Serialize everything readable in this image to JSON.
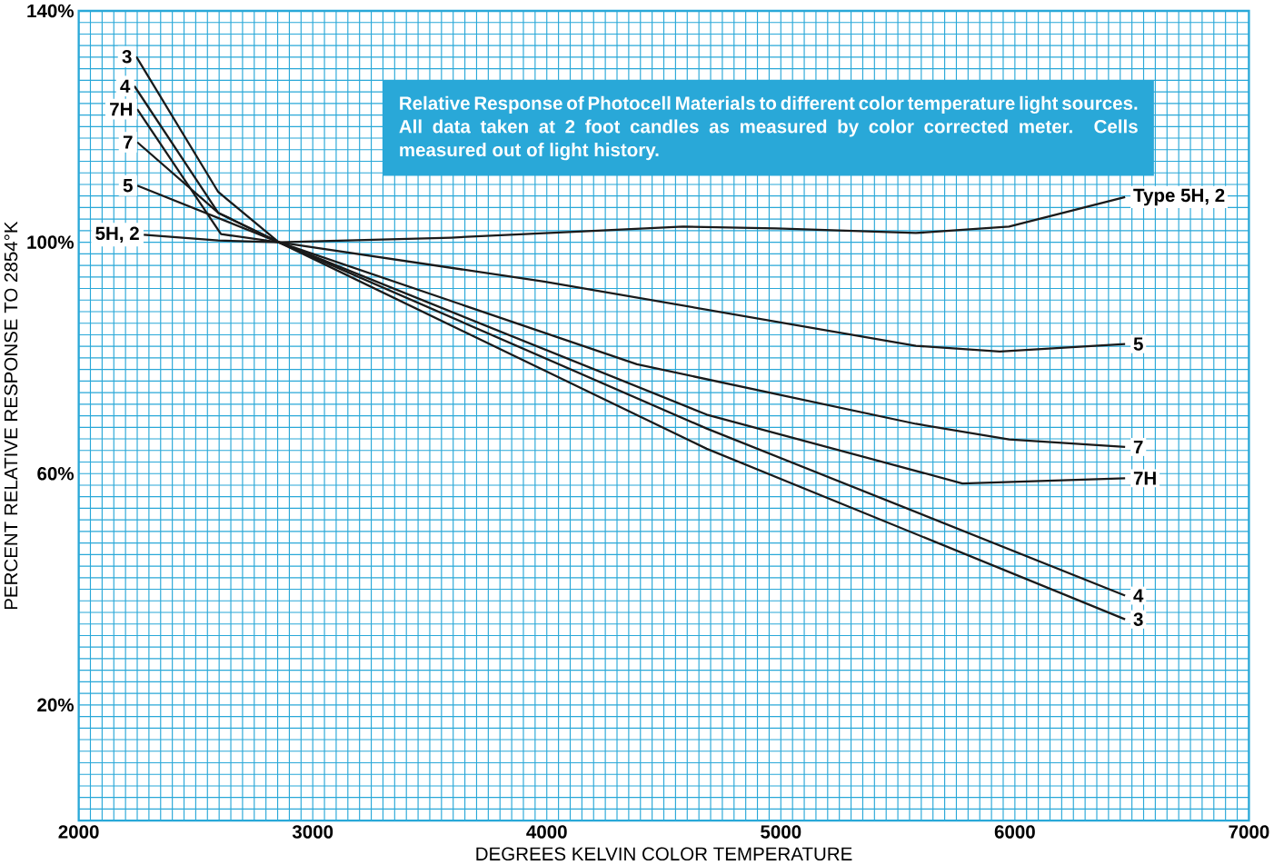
{
  "chart_data": {
    "type": "line",
    "title": "Relative Response of Photocell Materials to different color temperature light sources. All data taken at 2 foot candles as measured by color corrected meter. Cells measured out of light history.",
    "xlabel": "DEGREES KELVIN COLOR TEMPERATURE",
    "ylabel": "PERCENT RELATIVE RESPONSE TO 2854°K",
    "xlim": [
      2000,
      7000
    ],
    "ylim": [
      0,
      140
    ],
    "xticks": [
      2000,
      {
        "value": 2050,
        "label": null
      },
      {
        "value": 2100,
        "label": null
      },
      {
        "value": 2150,
        "label": null
      },
      {
        "value": 2200,
        "label": null
      },
      {
        "value": 2250,
        "label": null
      },
      {
        "value": 2300,
        "label": null
      },
      {
        "value": 2350,
        "label": null
      },
      {
        "value": 2400,
        "label": null
      },
      {
        "value": 2450,
        "label": null
      },
      {
        "value": 2500,
        "label": null
      },
      {
        "value": 2550,
        "label": null
      },
      {
        "value": 2600,
        "label": null
      },
      {
        "value": 2650,
        "label": null
      },
      {
        "value": 2700,
        "label": null
      },
      {
        "value": 2750,
        "label": null
      },
      {
        "value": 2800,
        "label": null
      },
      {
        "value": 2850,
        "label": null
      },
      {
        "value": 2900,
        "label": null
      },
      {
        "value": 2950,
        "label": null
      },
      3000,
      {
        "value": 3050,
        "label": null
      },
      {
        "value": 3100,
        "label": null
      },
      {
        "value": 3150,
        "label": null
      },
      {
        "value": 3200,
        "label": null
      },
      {
        "value": 3250,
        "label": null
      },
      {
        "value": 3300,
        "label": null
      },
      {
        "value": 3350,
        "label": null
      },
      {
        "value": 3400,
        "label": null
      },
      {
        "value": 3450,
        "label": null
      },
      {
        "value": 3500,
        "label": null
      },
      {
        "value": 3550,
        "label": null
      },
      {
        "value": 3600,
        "label": null
      },
      {
        "value": 3650,
        "label": null
      },
      {
        "value": 3700,
        "label": null
      },
      {
        "value": 3750,
        "label": null
      },
      {
        "value": 3800,
        "label": null
      },
      {
        "value": 3850,
        "label": null
      },
      {
        "value": 3900,
        "label": null
      },
      {
        "value": 3950,
        "label": null
      },
      4000,
      {
        "value": 4050,
        "label": null
      },
      {
        "value": 4100,
        "label": null
      },
      {
        "value": 4150,
        "label": null
      },
      {
        "value": 4200,
        "label": null
      },
      {
        "value": 4250,
        "label": null
      },
      {
        "value": 4300,
        "label": null
      },
      {
        "value": 4350,
        "label": null
      },
      {
        "value": 4400,
        "label": null
      },
      {
        "value": 4450,
        "label": null
      },
      {
        "value": 4500,
        "label": null
      },
      {
        "value": 4550,
        "label": null
      },
      {
        "value": 4600,
        "label": null
      },
      {
        "value": 4650,
        "label": null
      },
      {
        "value": 4700,
        "label": null
      },
      {
        "value": 4750,
        "label": null
      },
      {
        "value": 4800,
        "label": null
      },
      {
        "value": 4850,
        "label": null
      },
      {
        "value": 4900,
        "label": null
      },
      {
        "value": 4950,
        "label": null
      },
      5000,
      {
        "value": 5050,
        "label": null
      },
      {
        "value": 5100,
        "label": null
      },
      {
        "value": 5150,
        "label": null
      },
      {
        "value": 5200,
        "label": null
      },
      {
        "value": 5250,
        "label": null
      },
      {
        "value": 5300,
        "label": null
      },
      {
        "value": 5350,
        "label": null
      },
      {
        "value": 5400,
        "label": null
      },
      {
        "value": 5450,
        "label": null
      },
      {
        "value": 5500,
        "label": null
      },
      {
        "value": 5550,
        "label": null
      },
      {
        "value": 5600,
        "label": null
      },
      {
        "value": 5650,
        "label": null
      },
      {
        "value": 5700,
        "label": null
      },
      {
        "value": 5750,
        "label": null
      },
      {
        "value": 5800,
        "label": null
      },
      {
        "value": 5850,
        "label": null
      },
      {
        "value": 5900,
        "label": null
      },
      {
        "value": 5950,
        "label": null
      },
      6000,
      {
        "value": 6050,
        "label": null
      },
      {
        "value": 6100,
        "label": null
      },
      {
        "value": 6150,
        "label": null
      },
      {
        "value": 6200,
        "label": null
      },
      {
        "value": 6250,
        "label": null
      },
      {
        "value": 6300,
        "label": null
      },
      {
        "value": 6350,
        "label": null
      },
      {
        "value": 6400,
        "label": null
      },
      {
        "value": 6450,
        "label": null
      },
      {
        "value": 6500,
        "label": null
      },
      {
        "value": 6550,
        "label": null
      },
      {
        "value": 6600,
        "label": null
      },
      {
        "value": 6650,
        "label": null
      },
      {
        "value": 6700,
        "label": null
      },
      {
        "value": 6750,
        "label": null
      },
      {
        "value": 6800,
        "label": null
      },
      {
        "value": 6850,
        "label": null
      },
      {
        "value": 6900,
        "label": null
      },
      {
        "value": 6950,
        "label": null
      },
      7000
    ],
    "yticks": [
      {
        "value": 2,
        "label": null
      },
      {
        "value": 4,
        "label": null
      },
      {
        "value": 6,
        "label": null
      },
      {
        "value": 8,
        "label": null
      },
      {
        "value": 10,
        "label": null
      },
      {
        "value": 12,
        "label": null
      },
      {
        "value": 14,
        "label": null
      },
      {
        "value": 16,
        "label": null
      },
      {
        "value": 18,
        "label": null
      },
      {
        "value": 20,
        "label": "20%"
      },
      {
        "value": 22,
        "label": null
      },
      {
        "value": 24,
        "label": null
      },
      {
        "value": 26,
        "label": null
      },
      {
        "value": 28,
        "label": null
      },
      {
        "value": 30,
        "label": null
      },
      {
        "value": 32,
        "label": null
      },
      {
        "value": 34,
        "label": null
      },
      {
        "value": 36,
        "label": null
      },
      {
        "value": 38,
        "label": null
      },
      {
        "value": 40,
        "label": null
      },
      {
        "value": 42,
        "label": null
      },
      {
        "value": 44,
        "label": null
      },
      {
        "value": 46,
        "label": null
      },
      {
        "value": 48,
        "label": null
      },
      {
        "value": 50,
        "label": null
      },
      {
        "value": 52,
        "label": null
      },
      {
        "value": 54,
        "label": null
      },
      {
        "value": 56,
        "label": null
      },
      {
        "value": 58,
        "label": null
      },
      {
        "value": 60,
        "label": "60%"
      },
      {
        "value": 62,
        "label": null
      },
      {
        "value": 64,
        "label": null
      },
      {
        "value": 66,
        "label": null
      },
      {
        "value": 68,
        "label": null
      },
      {
        "value": 70,
        "label": null
      },
      {
        "value": 72,
        "label": null
      },
      {
        "value": 74,
        "label": null
      },
      {
        "value": 76,
        "label": null
      },
      {
        "value": 78,
        "label": null
      },
      {
        "value": 80,
        "label": null
      },
      {
        "value": 82,
        "label": null
      },
      {
        "value": 84,
        "label": null
      },
      {
        "value": 86,
        "label": null
      },
      {
        "value": 88,
        "label": null
      },
      {
        "value": 90,
        "label": null
      },
      {
        "value": 92,
        "label": null
      },
      {
        "value": 94,
        "label": null
      },
      {
        "value": 96,
        "label": null
      },
      {
        "value": 98,
        "label": null
      },
      {
        "value": 100,
        "label": "100%"
      },
      {
        "value": 102,
        "label": null
      },
      {
        "value": 104,
        "label": null
      },
      {
        "value": 106,
        "label": null
      },
      {
        "value": 108,
        "label": null
      },
      {
        "value": 110,
        "label": null
      },
      {
        "value": 112,
        "label": null
      },
      {
        "value": 114,
        "label": null
      },
      {
        "value": 116,
        "label": null
      },
      {
        "value": 118,
        "label": null
      },
      {
        "value": 120,
        "label": null
      },
      {
        "value": 122,
        "label": null
      },
      {
        "value": 124,
        "label": null
      },
      {
        "value": 126,
        "label": null
      },
      {
        "value": 128,
        "label": null
      },
      {
        "value": 130,
        "label": null
      },
      {
        "value": 132,
        "label": null
      },
      {
        "value": 134,
        "label": null
      },
      {
        "value": 136,
        "label": null
      },
      {
        "value": 138,
        "label": null
      },
      {
        "value": 140,
        "label": "140%"
      }
    ],
    "grid": true,
    "marker": "none",
    "line_style": "solid",
    "series": [
      {
        "name": "Type 5H, 2",
        "color": "#1a1a1a",
        "x": [
          2278,
          2596,
          2855,
          3590,
          4583,
          4980,
          5577,
          5975,
          6471
        ],
        "values": [
          101.3,
          100.3,
          100,
          100.8,
          102.7,
          102.4,
          101.6,
          102.7,
          107.8
        ]
      },
      {
        "name": "5",
        "color": "#1a1a1a",
        "x": [
          2250,
          2855,
          3988,
          5577,
          5935,
          6471
        ],
        "values": [
          109.8,
          100,
          93.2,
          82.1,
          81.1,
          82.4
        ]
      },
      {
        "name": "7",
        "color": "#1a1a1a",
        "x": [
          2250,
          2596,
          2855,
          4385,
          5577,
          5975,
          6471
        ],
        "values": [
          117.3,
          105.1,
          100,
          78.9,
          68.6,
          65.9,
          64.6
        ]
      },
      {
        "name": "7H",
        "color": "#1a1a1a",
        "x": [
          2250,
          2608,
          2855,
          4683,
          5776,
          6471
        ],
        "values": [
          123.0,
          101.4,
          100,
          70.2,
          58.3,
          59.2
        ]
      },
      {
        "name": "4",
        "color": "#1a1a1a",
        "x": [
          2238,
          2596,
          2855,
          4683,
          6471
        ],
        "values": [
          127.0,
          105.1,
          100,
          67.8,
          38.9
        ]
      },
      {
        "name": "3",
        "color": "#1a1a1a",
        "x": [
          2246,
          2596,
          2855,
          4683,
          6471
        ],
        "values": [
          132.1,
          108.7,
          100,
          64.3,
          34.8
        ]
      }
    ],
    "annotations": [
      {
        "text": "3",
        "x": 2246,
        "y": 132.1
      },
      {
        "text": "4",
        "x": 2238,
        "y": 127.0
      },
      {
        "text": "7H",
        "x": 2250,
        "y": 123.0
      },
      {
        "text": "7",
        "x": 2250,
        "y": 117.3
      },
      {
        "text": "5",
        "x": 2250,
        "y": 109.8
      },
      {
        "text": "5H, 2",
        "x": 2278,
        "y": 101.3
      }
    ]
  }
}
